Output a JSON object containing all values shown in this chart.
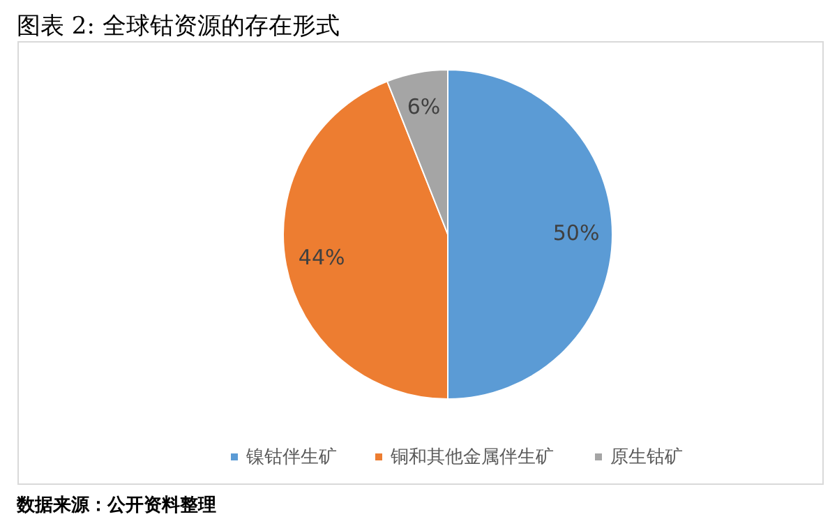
{
  "chart_data": {
    "type": "pie",
    "title": "图表 2:  全球钴资源的存在形式",
    "categories": [
      "镍钴伴生矿",
      "铜和其他金属伴生矿",
      "原生钴矿"
    ],
    "values": [
      50,
      44,
      6
    ],
    "colors": [
      "#5b9bd5",
      "#ed7d31",
      "#a5a5a5"
    ],
    "value_labels": [
      "50%",
      "44%",
      "6%"
    ],
    "legend": "bottom",
    "annotations": [
      "数据来源：公开资料整理"
    ]
  }
}
